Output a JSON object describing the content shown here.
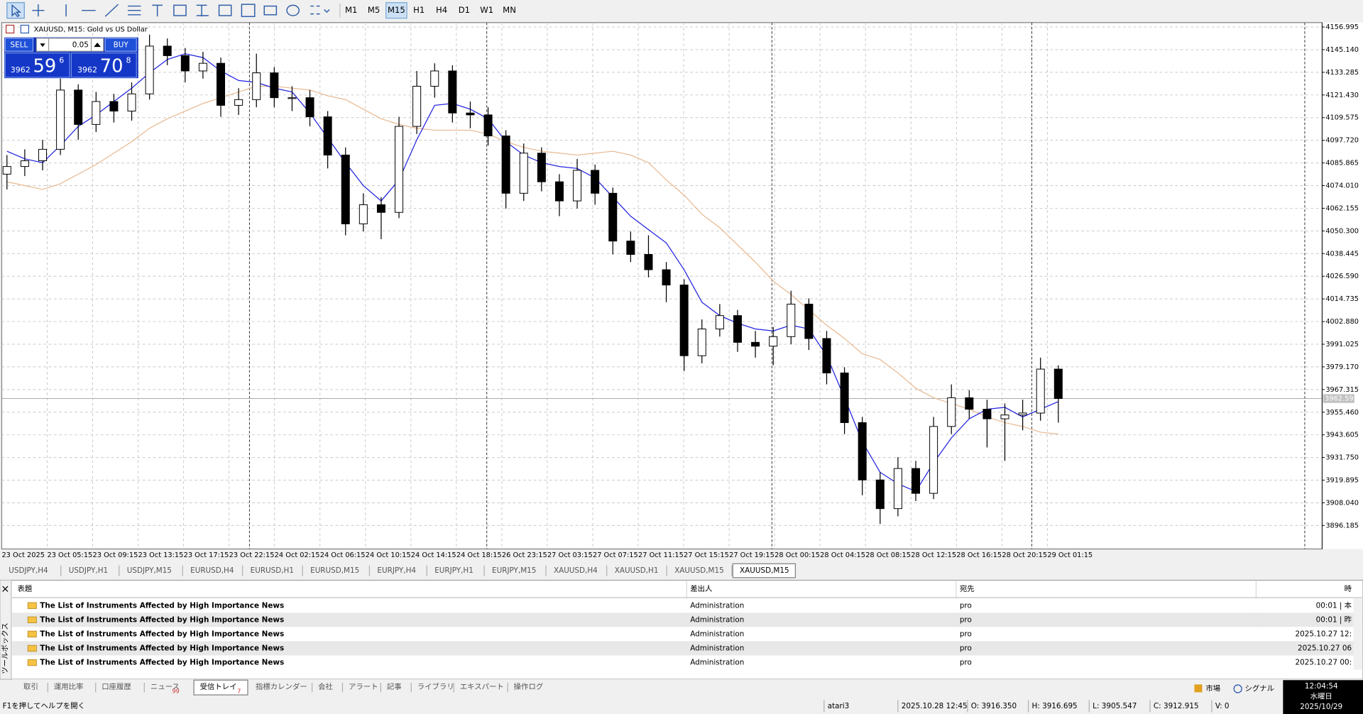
{
  "toolbar": {
    "timeframes": [
      "M1",
      "M5",
      "M15",
      "H1",
      "H4",
      "D1",
      "W1",
      "MN"
    ],
    "active_timeframe": "M15"
  },
  "chart": {
    "type": "candlestick",
    "title": "XAUUSD, M15:  Gold vs US Dollar",
    "trade_panel": {
      "sell": "SELL",
      "buy": "BUY",
      "lot": "0.05",
      "bid_prefix": "3962",
      "bid_big": "59",
      "bid_small": "6",
      "ask_prefix": "3962",
      "ask_big": "70",
      "ask_small": "8"
    },
    "ylim": [
      3883.9,
      4159.3
    ],
    "yticks": [
      4156.995,
      {
        "value": 4145.14,
        "label": "4145.140"
      },
      4133.285,
      {
        "value": 4121.43,
        "label": "4121.430"
      },
      4109.575,
      {
        "value": 4097.72,
        "label": "4097.720"
      },
      4085.865,
      {
        "value": 4074.01,
        "label": "4074.010"
      },
      4062.155,
      {
        "value": 4050.3,
        "label": "4050.300"
      },
      4038.445,
      {
        "value": 4026.59,
        "label": "4026.590"
      },
      4014.735,
      {
        "value": 4002.88,
        "label": "4002.880"
      },
      3991.025,
      {
        "value": 3979.17,
        "label": "3979.170"
      },
      3967.315,
      {
        "value": 3955.46,
        "label": "3955.460"
      },
      3943.605,
      {
        "value": 3931.75,
        "label": "3931.750"
      },
      3919.895,
      {
        "value": 3908.04,
        "label": "3908.040"
      },
      3896.185
    ],
    "bid_line": 3962.59,
    "xlabels": [
      "23 Oct 2025",
      "23 Oct 05:15",
      "23 Oct 09:15",
      "23 Oct 13:15",
      "23 Oct 17:15",
      "23 Oct 22:15",
      "24 Oct 02:15",
      "24 Oct 06:15",
      "24 Oct 10:15",
      "24 Oct 14:15",
      "24 Oct 18:15",
      "26 Oct 23:15",
      "27 Oct 03:15",
      "27 Oct 07:15",
      "27 Oct 11:15",
      "27 Oct 15:15",
      "27 Oct 19:15",
      "28 Oct 00:15",
      "28 Oct 04:15",
      "28 Oct 08:15",
      "28 Oct 12:15",
      "28 Oct 16:15",
      "28 Oct 20:15",
      "29 Oct 01:15"
    ],
    "grid": true,
    "candles": {
      "open": [
        4080,
        4084,
        4087,
        4093,
        4124,
        4106,
        4118,
        4113,
        4122,
        4147,
        4142,
        4134,
        4138,
        4116,
        4119,
        4133,
        4120,
        4120,
        4110,
        4090,
        4054,
        4064,
        4060,
        4105,
        4126,
        4134,
        4112,
        4111,
        4100,
        4070,
        4091,
        4076,
        4066,
        4082,
        4070,
        4045,
        4038,
        4030,
        4022,
        3985,
        3999,
        4006,
        3992,
        3990,
        3995,
        4012,
        3994,
        3976,
        3950,
        3920,
        3905,
        3926,
        3913,
        3948,
        3963,
        3957,
        3952,
        3954,
        3955,
        3978
      ],
      "high": [
        4090,
        4093,
        4098,
        4130,
        4127,
        4123,
        4122,
        4128,
        4153,
        4151,
        4146,
        4144,
        4141,
        4125,
        4143,
        4136,
        4126,
        4124,
        4113,
        4094,
        4070,
        4068,
        4110,
        4134,
        4138,
        4137,
        4118,
        4115,
        4103,
        4096,
        4094,
        4080,
        4088,
        4085,
        4073,
        4050,
        4048,
        4034,
        4025,
        4004,
        4012,
        4009,
        3998,
        4000,
        4019,
        4015,
        3998,
        3979,
        3953,
        3924,
        3932,
        3930,
        3953,
        3970,
        3967,
        3962,
        3960,
        3962,
        3984,
        3980
      ],
      "low": [
        4072,
        4079,
        4082,
        4090,
        4098,
        4102,
        4107,
        4108,
        4119,
        4137,
        4128,
        4130,
        4110,
        4111,
        4115,
        4115,
        4113,
        4105,
        4083,
        4048,
        4050,
        4046,
        4057,
        4101,
        4120,
        4107,
        4104,
        4095,
        4062,
        4066,
        4071,
        4058,
        4062,
        4064,
        4038,
        4034,
        4026,
        4013,
        3977,
        3981,
        3995,
        3987,
        3984,
        3980,
        3991,
        3988,
        3970,
        3944,
        3912,
        3897,
        3901,
        3909,
        3910,
        3944,
        3952,
        3937,
        3930,
        3946,
        3951,
        3950
      ],
      "close": [
        4084,
        4087,
        4093,
        4124,
        4106,
        4118,
        4113,
        4122,
        4147,
        4142,
        4134,
        4138,
        4116,
        4119,
        4133,
        4120,
        4120,
        4110,
        4090,
        4054,
        4064,
        4060,
        4105,
        4126,
        4134,
        4112,
        4111,
        4100,
        4070,
        4091,
        4076,
        4066,
        4082,
        4070,
        4045,
        4038,
        4030,
        4022,
        3985,
        3999,
        4006,
        3992,
        3990,
        3995,
        4012,
        3994,
        3976,
        3950,
        3920,
        3905,
        3926,
        3913,
        3948,
        3963,
        3957,
        3952,
        3954,
        3955,
        3978,
        3962.59
      ],
      "up_color": "#ffffff",
      "down_color": "#000000"
    },
    "ma_fast": {
      "color": "#1f1fe0",
      "values": [
        4092,
        4088,
        4086,
        4095,
        4105,
        4111,
        4118,
        4125,
        4133,
        4140,
        4143,
        4141,
        4134,
        4129,
        4128,
        4125,
        4123,
        4112,
        4099,
        4086,
        4074,
        4066,
        4077,
        4098,
        4116,
        4117,
        4114,
        4109,
        4097,
        4090,
        4086,
        4084,
        4083,
        4078,
        4068,
        4058,
        4051,
        4044,
        4030,
        4013,
        4006,
        4002,
        3999,
        3998,
        4001,
        3999,
        3985,
        3963,
        3940,
        3924,
        3918,
        3914,
        3929,
        3942,
        3952,
        3957,
        3958,
        3953,
        3957,
        3961
      ]
    },
    "ma_slow": {
      "color": "#e8b890",
      "values": [
        4076,
        4074,
        4072,
        4075,
        4080,
        4085,
        4091,
        4097,
        4104,
        4109,
        4113,
        4117,
        4120,
        4123,
        4126,
        4126,
        4125,
        4124,
        4121,
        4119,
        4114,
        4109,
        4106,
        4104,
        4103,
        4103,
        4103,
        4101,
        4097,
        4094,
        4092,
        4091,
        4090,
        4091,
        4092,
        4090,
        4086,
        4077,
        4069,
        4059,
        4052,
        4043,
        4034,
        4024,
        4017,
        4009,
        4001,
        3994,
        3986,
        3983,
        3976,
        3968,
        3963,
        3960,
        3957,
        3953,
        3950,
        3948,
        3945,
        3944
      ]
    }
  },
  "symbol_tabs": [
    "USDJPY,H4",
    "USDJPY,H1",
    "USDJPY,M15",
    "EURUSD,H4",
    "EURUSD,H1",
    "EURUSD,M15",
    "EURJPY,H4",
    "EURJPY,H1",
    "EURJPY,M15",
    "XAUUSD,H4",
    "XAUUSD,H1",
    "XAUUSD,M15",
    "XAUUSD,M15"
  ],
  "mailbox": {
    "columns": [
      "表題",
      "差出人",
      "宛先",
      "時"
    ],
    "rows": [
      [
        "The List of Instruments Affected by High Importance News",
        "Administration",
        "pro",
        "00:01 | 本"
      ],
      [
        "The List of Instruments Affected by High Importance News",
        "Administration",
        "pro",
        "00:01 | 昨"
      ],
      [
        "The List of Instruments Affected by High Importance News",
        "Administration",
        "pro",
        "2025.10.27 12:"
      ],
      [
        "The List of Instruments Affected by High Importance News",
        "Administration",
        "pro",
        "2025.10.27 06"
      ],
      [
        "The List of Instruments Affected by High Importance News",
        "Administration",
        "pro",
        "2025.10.27 00:"
      ]
    ]
  },
  "side_label": "ツールボックス",
  "terminal_tabs": [
    {
      "label": "取引"
    },
    {
      "label": "運用比率"
    },
    {
      "label": "口座履歴"
    },
    {
      "label": "ニュース",
      "badge": "99"
    },
    {
      "label": "受信トレイ",
      "badge": "7"
    },
    {
      "label": "指標カレンダー"
    },
    {
      "label": "会社"
    },
    {
      "label": "アラート"
    },
    {
      "label": "記事"
    },
    {
      "label": "ライブラリ"
    },
    {
      "label": "エキスパート"
    },
    {
      "label": "操作ログ"
    }
  ],
  "statusbar": {
    "help": "F1を押してヘルプを開く",
    "profile": "atari3",
    "datetime": "2025.10.28 12:45",
    "open": "O: 3916.350",
    "high": "H: 3916.695",
    "low": "L: 3905.547",
    "close": "C: 3912.915",
    "volume": "V: 0",
    "market": "市場",
    "signal": "シグナル"
  },
  "clock": {
    "time": "12:04:54",
    "weekday": "水曜日",
    "date": "2025/10/29"
  }
}
